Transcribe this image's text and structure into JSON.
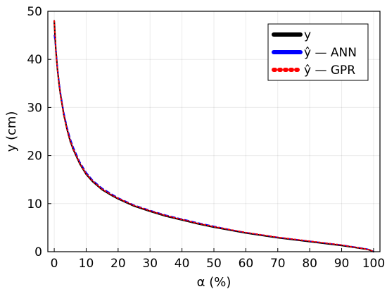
{
  "chart_data": {
    "type": "line",
    "title": "",
    "xlabel": "α (%)",
    "ylabel": "y (cm)",
    "xlim": [
      -2,
      102
    ],
    "ylim": [
      0,
      50
    ],
    "xticks": [
      0,
      10,
      20,
      30,
      40,
      50,
      60,
      70,
      80,
      90,
      100
    ],
    "yticks": [
      0,
      10,
      20,
      30,
      40,
      50
    ],
    "grid": true,
    "legend_position": "top-right",
    "series": [
      {
        "name": "y",
        "color": "#000000",
        "style": "solid",
        "x": [
          0,
          0.5,
          1,
          1.5,
          2,
          3,
          4,
          5,
          6,
          8,
          10,
          12,
          15,
          18,
          20,
          25,
          30,
          35,
          40,
          45,
          50,
          55,
          60,
          65,
          70,
          75,
          80,
          85,
          90,
          93,
          95,
          97,
          98,
          99,
          99.5,
          100
        ],
        "y": [
          48,
          42,
          38,
          35,
          32.5,
          28.5,
          25.5,
          23,
          21.2,
          18.3,
          16.1,
          14.6,
          12.9,
          11.7,
          11.0,
          9.5,
          8.4,
          7.4,
          6.6,
          5.8,
          5.1,
          4.5,
          3.9,
          3.4,
          2.9,
          2.5,
          2.1,
          1.7,
          1.3,
          1.0,
          0.8,
          0.6,
          0.5,
          0.3,
          0.15,
          0
        ]
      },
      {
        "name": "ŷ — ANN",
        "color": "#0000ff",
        "style": "dashed",
        "x": [
          0,
          0.5,
          1,
          1.5,
          2,
          3,
          4,
          5,
          6,
          8,
          10,
          12,
          15,
          18,
          20,
          25,
          30,
          35,
          40,
          45,
          50,
          55,
          60,
          65,
          70,
          75,
          80,
          85,
          90,
          93,
          95,
          97,
          98,
          99,
          99.5,
          100
        ],
        "y": [
          45,
          42.5,
          38.5,
          35.5,
          33,
          29,
          26,
          23.6,
          21.7,
          18.7,
          16.5,
          14.9,
          13.2,
          12.0,
          11.2,
          9.7,
          8.6,
          7.6,
          6.8,
          6.0,
          5.3,
          4.6,
          4.0,
          3.5,
          3.0,
          2.6,
          2.2,
          1.8,
          1.4,
          1.1,
          0.9,
          0.7,
          0.55,
          0.35,
          0.2,
          0.05
        ]
      },
      {
        "name": "ŷ — GPR",
        "color": "#ff0000",
        "style": "dotted",
        "x": [
          0,
          0.5,
          1,
          1.5,
          2,
          3,
          4,
          5,
          6,
          8,
          10,
          12,
          15,
          18,
          20,
          25,
          30,
          35,
          40,
          45,
          50,
          55,
          60,
          65,
          70,
          75,
          80,
          85,
          90,
          93,
          95,
          97,
          98,
          99,
          99.5,
          100
        ],
        "y": [
          48,
          42,
          38,
          35,
          32.5,
          28.5,
          25.5,
          23.1,
          21.3,
          18.4,
          16.2,
          14.7,
          13.0,
          11.8,
          11.1,
          9.6,
          8.5,
          7.5,
          6.7,
          5.9,
          5.2,
          4.6,
          4.0,
          3.5,
          3.0,
          2.6,
          2.2,
          1.8,
          1.4,
          1.05,
          0.85,
          0.62,
          0.5,
          0.32,
          0.15,
          0
        ]
      }
    ]
  }
}
